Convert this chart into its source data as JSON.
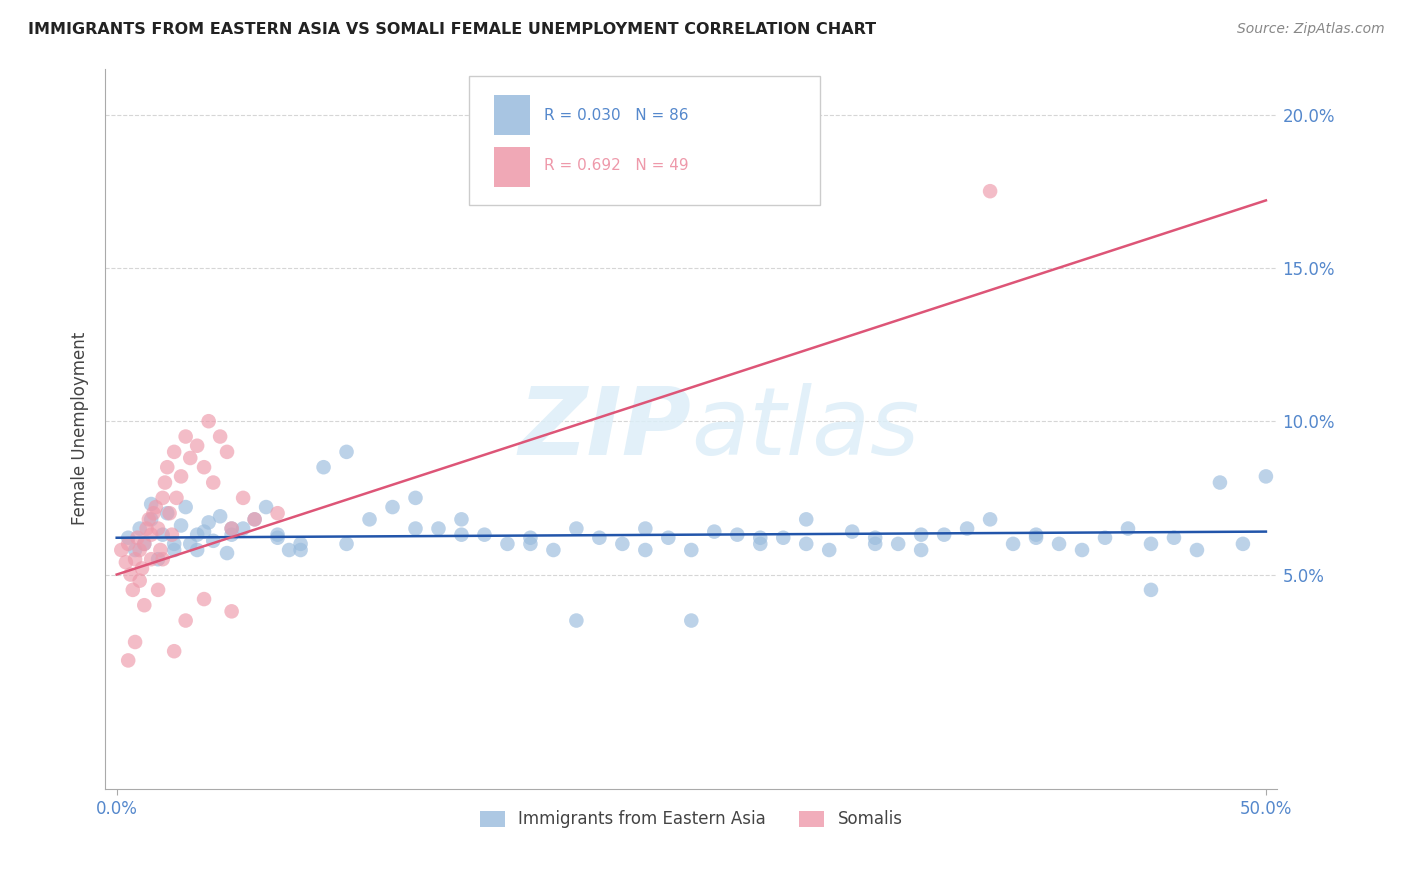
{
  "title": "IMMIGRANTS FROM EASTERN ASIA VS SOMALI FEMALE UNEMPLOYMENT CORRELATION CHART",
  "source": "Source: ZipAtlas.com",
  "ylabel": "Female Unemployment",
  "legend_label_1": "Immigrants from Eastern Asia",
  "legend_label_2": "Somalis",
  "R1": 0.03,
  "N1": 86,
  "R2": 0.692,
  "N2": 49,
  "xlim": [
    -0.005,
    0.505
  ],
  "ylim": [
    -0.02,
    0.215
  ],
  "yticks": [
    0.05,
    0.1,
    0.15,
    0.2
  ],
  "ytick_labels": [
    "5.0%",
    "10.0%",
    "15.0%",
    "20.0%"
  ],
  "xticks": [
    0.0,
    0.5
  ],
  "xtick_labels": [
    "0.0%",
    "50.0%"
  ],
  "color_blue": "#99BBDD",
  "color_pink": "#EE99AA",
  "color_line_blue": "#2255AA",
  "color_line_pink": "#DD5577",
  "axis_color": "#5588CC",
  "blue_x": [
    0.005,
    0.008,
    0.01,
    0.012,
    0.015,
    0.018,
    0.02,
    0.022,
    0.025,
    0.028,
    0.03,
    0.032,
    0.035,
    0.038,
    0.04,
    0.042,
    0.045,
    0.048,
    0.05,
    0.055,
    0.06,
    0.065,
    0.07,
    0.075,
    0.08,
    0.09,
    0.1,
    0.11,
    0.12,
    0.13,
    0.14,
    0.15,
    0.16,
    0.17,
    0.18,
    0.19,
    0.2,
    0.21,
    0.22,
    0.23,
    0.24,
    0.25,
    0.26,
    0.27,
    0.28,
    0.29,
    0.3,
    0.31,
    0.32,
    0.33,
    0.34,
    0.35,
    0.36,
    0.37,
    0.38,
    0.39,
    0.4,
    0.41,
    0.42,
    0.43,
    0.44,
    0.45,
    0.46,
    0.47,
    0.48,
    0.49,
    0.015,
    0.025,
    0.035,
    0.05,
    0.07,
    0.1,
    0.15,
    0.2,
    0.25,
    0.3,
    0.35,
    0.4,
    0.45,
    0.5,
    0.08,
    0.13,
    0.18,
    0.23,
    0.28,
    0.33
  ],
  "blue_y": [
    0.062,
    0.058,
    0.065,
    0.06,
    0.068,
    0.055,
    0.063,
    0.07,
    0.058,
    0.066,
    0.072,
    0.06,
    0.058,
    0.064,
    0.067,
    0.061,
    0.069,
    0.057,
    0.063,
    0.065,
    0.068,
    0.072,
    0.063,
    0.058,
    0.06,
    0.085,
    0.09,
    0.068,
    0.072,
    0.075,
    0.065,
    0.068,
    0.063,
    0.06,
    0.062,
    0.058,
    0.065,
    0.062,
    0.06,
    0.065,
    0.062,
    0.058,
    0.064,
    0.063,
    0.06,
    0.062,
    0.068,
    0.058,
    0.064,
    0.062,
    0.06,
    0.058,
    0.063,
    0.065,
    0.068,
    0.06,
    0.062,
    0.06,
    0.058,
    0.062,
    0.065,
    0.06,
    0.062,
    0.058,
    0.08,
    0.06,
    0.073,
    0.06,
    0.063,
    0.065,
    0.062,
    0.06,
    0.063,
    0.035,
    0.035,
    0.06,
    0.063,
    0.063,
    0.045,
    0.082,
    0.058,
    0.065,
    0.06,
    0.058,
    0.062,
    0.06
  ],
  "pink_x": [
    0.002,
    0.004,
    0.005,
    0.006,
    0.007,
    0.008,
    0.009,
    0.01,
    0.01,
    0.011,
    0.012,
    0.013,
    0.014,
    0.015,
    0.015,
    0.016,
    0.017,
    0.018,
    0.019,
    0.02,
    0.02,
    0.021,
    0.022,
    0.023,
    0.024,
    0.025,
    0.026,
    0.028,
    0.03,
    0.032,
    0.035,
    0.038,
    0.04,
    0.042,
    0.045,
    0.048,
    0.05,
    0.055,
    0.06,
    0.07,
    0.005,
    0.008,
    0.012,
    0.018,
    0.025,
    0.03,
    0.038,
    0.05,
    0.38
  ],
  "pink_y": [
    0.058,
    0.054,
    0.06,
    0.05,
    0.045,
    0.055,
    0.062,
    0.058,
    0.048,
    0.052,
    0.06,
    0.065,
    0.068,
    0.063,
    0.055,
    0.07,
    0.072,
    0.065,
    0.058,
    0.075,
    0.055,
    0.08,
    0.085,
    0.07,
    0.063,
    0.09,
    0.075,
    0.082,
    0.095,
    0.088,
    0.092,
    0.085,
    0.1,
    0.08,
    0.095,
    0.09,
    0.065,
    0.075,
    0.068,
    0.07,
    0.022,
    0.028,
    0.04,
    0.045,
    0.025,
    0.035,
    0.042,
    0.038,
    0.175
  ],
  "blue_line_x": [
    0.0,
    0.5
  ],
  "blue_line_y": [
    0.062,
    0.064
  ],
  "pink_line_x": [
    0.0,
    0.5
  ],
  "pink_line_y": [
    0.05,
    0.172
  ]
}
